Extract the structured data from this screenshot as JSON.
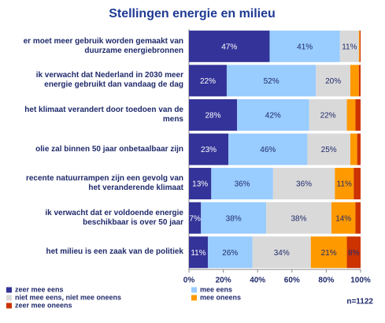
{
  "chart_data": {
    "type": "stacked_bar_horizontal",
    "title": "Stellingen energie en milieu",
    "annotation": "n=1122",
    "categories": [
      "er moet meer gebruik worden gemaakt van duurzame energiebronnen",
      "ik verwacht dat  Nederland in 2030 meer energie gebruikt dan vandaag de dag",
      "het klimaat verandert door toedoen van de mens",
      "olie zal binnen 50 jaar onbetaalbaar zijn",
      "recente natuurrampen zijn een gevolg van het veranderende klimaat",
      "ik verwacht dat er voldoende energie beschikbaar is over 50 jaar",
      "het milieu is een zaak van de politiek"
    ],
    "series": [
      {
        "name": "zeer mee eens",
        "color": "#333399",
        "values": [
          47,
          22,
          28,
          23,
          13,
          7,
          11
        ],
        "value_labels": [
          "47%",
          "22%",
          "28%",
          "23%",
          "13%",
          "7%",
          "11%"
        ]
      },
      {
        "name": "mee eens",
        "color": "#99ccff",
        "values": [
          41,
          52,
          42,
          46,
          36,
          38,
          26
        ],
        "value_labels": [
          "41%",
          "52%",
          "42%",
          "46%",
          "36%",
          "38%",
          "26%"
        ]
      },
      {
        "name": "niet mee eens, niet mee oneens",
        "color": "#d9d9d9",
        "values": [
          11,
          20,
          22,
          25,
          36,
          38,
          34
        ],
        "value_labels": [
          "11%",
          "20%",
          "22%",
          "25%",
          "36%",
          "38%",
          "34%"
        ]
      },
      {
        "name": "mee oneens",
        "color": "#ff9900",
        "values": [
          0.5,
          5,
          5,
          4,
          11,
          14,
          21
        ],
        "value_labels": [
          null,
          null,
          null,
          null,
          "11%",
          "14%",
          "21%"
        ]
      },
      {
        "name": "zeer mee oneens",
        "color": "#cc3300",
        "values": [
          0.5,
          1,
          3,
          2,
          4,
          3,
          8
        ],
        "value_labels": [
          null,
          null,
          null,
          null,
          null,
          null,
          "8%"
        ]
      }
    ],
    "xlim": [
      0,
      100
    ],
    "xticks": [
      {
        "value": 0,
        "label": "0%"
      },
      {
        "value": 20,
        "label": "20%"
      },
      {
        "value": 40,
        "label": "40%"
      },
      {
        "value": 60,
        "label": "60%"
      },
      {
        "value": 80,
        "label": "80%"
      },
      {
        "value": 100,
        "label": "100%"
      }
    ]
  }
}
